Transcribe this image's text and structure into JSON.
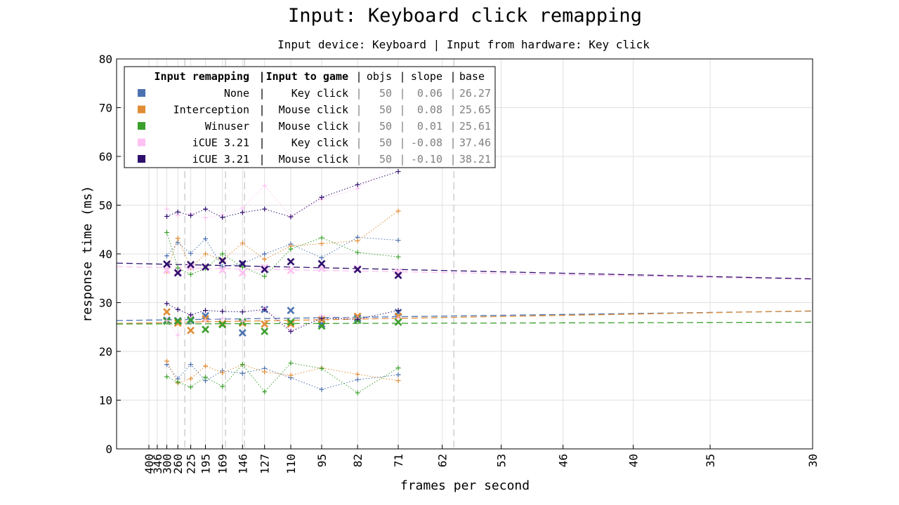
{
  "chart_data": {
    "type": "scatter",
    "title": "Input: Keyboard click remapping",
    "subtitle": "Input device: Keyboard | Input from hardware: Key click",
    "xlabel": "frames per second",
    "ylabel": "response time (ms)",
    "ylim": [
      0,
      80
    ],
    "yticks": [
      0,
      10,
      20,
      30,
      40,
      50,
      60,
      70,
      80
    ],
    "x_scale": "reciprocal",
    "x_range_fps": [
      1000,
      30
    ],
    "xticks": [
      400,
      346,
      300,
      260,
      225,
      195,
      169,
      146,
      127,
      110,
      95,
      82,
      71,
      62,
      53,
      46,
      40,
      35,
      30
    ],
    "grid": true,
    "legend_position": "top-left",
    "legend_header": {
      "remap": "Input remapping",
      "game": "Input to game",
      "objs": "objs",
      "slope": "slope",
      "base": "base"
    },
    "reference_lines_fps": [
      240,
      165,
      144,
      60
    ],
    "series": [
      {
        "name": "None",
        "input_to_game": "Key click",
        "objs": "50",
        "slope": "0.06",
        "base": "26.27",
        "color": "#4c72b0",
        "x": [
          300,
          260,
          225,
          195,
          169,
          146,
          127,
          110,
          95,
          82,
          71
        ],
        "max": [
          39.6,
          42.3,
          40.1,
          43.1,
          37.4,
          38.0,
          40.0,
          42.0,
          39.2,
          43.4,
          42.8
        ],
        "mean": [
          26.4,
          26.3,
          26.3,
          27.3,
          25.6,
          23.8,
          28.6,
          28.4,
          25.6,
          26.8,
          28.0
        ],
        "min": [
          17.3,
          14.4,
          17.3,
          14.0,
          16.0,
          15.5,
          16.5,
          14.6,
          12.2,
          14.2,
          15.2
        ],
        "trend": [
          [
            1000,
            26.33
          ],
          [
            30,
            28.27
          ]
        ]
      },
      {
        "name": "Interception",
        "input_to_game": "Mouse click",
        "objs": "50",
        "slope": "0.08",
        "base": "25.65",
        "color": "#e08c34",
        "x": [
          300,
          260,
          225,
          195,
          169,
          146,
          127,
          110,
          95,
          82,
          71
        ],
        "max": [
          36.4,
          43.2,
          37.1,
          40.0,
          38.7,
          42.2,
          38.9,
          41.6,
          42.1,
          42.7,
          48.8
        ],
        "mean": [
          28.1,
          25.8,
          24.3,
          26.7,
          25.7,
          25.8,
          25.6,
          25.6,
          26.5,
          27.2,
          27.2
        ],
        "min": [
          18.0,
          13.5,
          14.4,
          17.0,
          15.6,
          17.3,
          15.8,
          15.1,
          16.6,
          15.3,
          14.0
        ],
        "trend": [
          [
            1000,
            25.73
          ],
          [
            30,
            28.32
          ]
        ]
      },
      {
        "name": "Winuser",
        "input_to_game": "Mouse click",
        "objs": "50",
        "slope": "0.01",
        "base": "25.61",
        "color": "#3aa02c",
        "x": [
          300,
          260,
          225,
          195,
          169,
          146,
          127,
          110,
          95,
          82,
          71
        ],
        "max": [
          44.4,
          37.1,
          35.8,
          37.0,
          40.0,
          37.3,
          35.4,
          41.0,
          43.3,
          40.3,
          39.4
        ],
        "mean": [
          26.2,
          26.2,
          26.5,
          24.5,
          25.5,
          26.0,
          24.1,
          26.0,
          25.2,
          26.4,
          26.0
        ],
        "min": [
          14.8,
          13.7,
          12.7,
          14.7,
          12.8,
          17.3,
          11.7,
          17.6,
          16.5,
          11.5,
          16.6
        ],
        "trend": [
          [
            1000,
            25.62
          ],
          [
            30,
            25.98
          ]
        ]
      },
      {
        "name": "iCUE 3.21",
        "input_to_game": "Key click",
        "objs": "50",
        "slope": "-0.08",
        "base": "37.46",
        "color": "#ffc2f2",
        "x": [
          300,
          260,
          225,
          195,
          169,
          146,
          127,
          110,
          95,
          82,
          71
        ],
        "max": [
          49.2,
          47.9,
          48.2,
          47.4,
          48.0,
          49.4,
          54.0,
          47.7,
          51.2,
          53.4,
          58.7
        ],
        "mean": [
          36.6,
          36.3,
          37.3,
          37.4,
          36.7,
          36.1,
          37.2,
          36.6,
          37.0,
          37.0,
          36.3
        ],
        "min": [
          26.3,
          23.3,
          27.3,
          26.4,
          26.8,
          26.2,
          28.9,
          24.3,
          27.4,
          26.8,
          26.8
        ],
        "trend": [
          [
            1000,
            37.38
          ],
          [
            30,
            34.79
          ]
        ]
      },
      {
        "name": "iCUE 3.21",
        "input_to_game": "Mouse click",
        "objs": "50",
        "slope": "-0.10",
        "base": "38.21",
        "color": "#2e0f6e",
        "x": [
          300,
          260,
          225,
          195,
          169,
          146,
          127,
          110,
          95,
          82,
          71
        ],
        "max": [
          47.7,
          48.6,
          47.9,
          49.2,
          47.5,
          48.5,
          49.2,
          47.6,
          51.6,
          54.2,
          56.9
        ],
        "mean": [
          37.9,
          36.1,
          37.8,
          37.3,
          38.6,
          38.0,
          36.8,
          38.4,
          38.0,
          36.8,
          35.6
        ],
        "min": [
          29.8,
          28.6,
          27.5,
          28.4,
          28.2,
          28.1,
          28.6,
          24.1,
          26.8,
          26.6,
          28.4
        ],
        "trend": [
          [
            1000,
            38.11
          ],
          [
            30,
            34.88
          ]
        ]
      }
    ]
  }
}
